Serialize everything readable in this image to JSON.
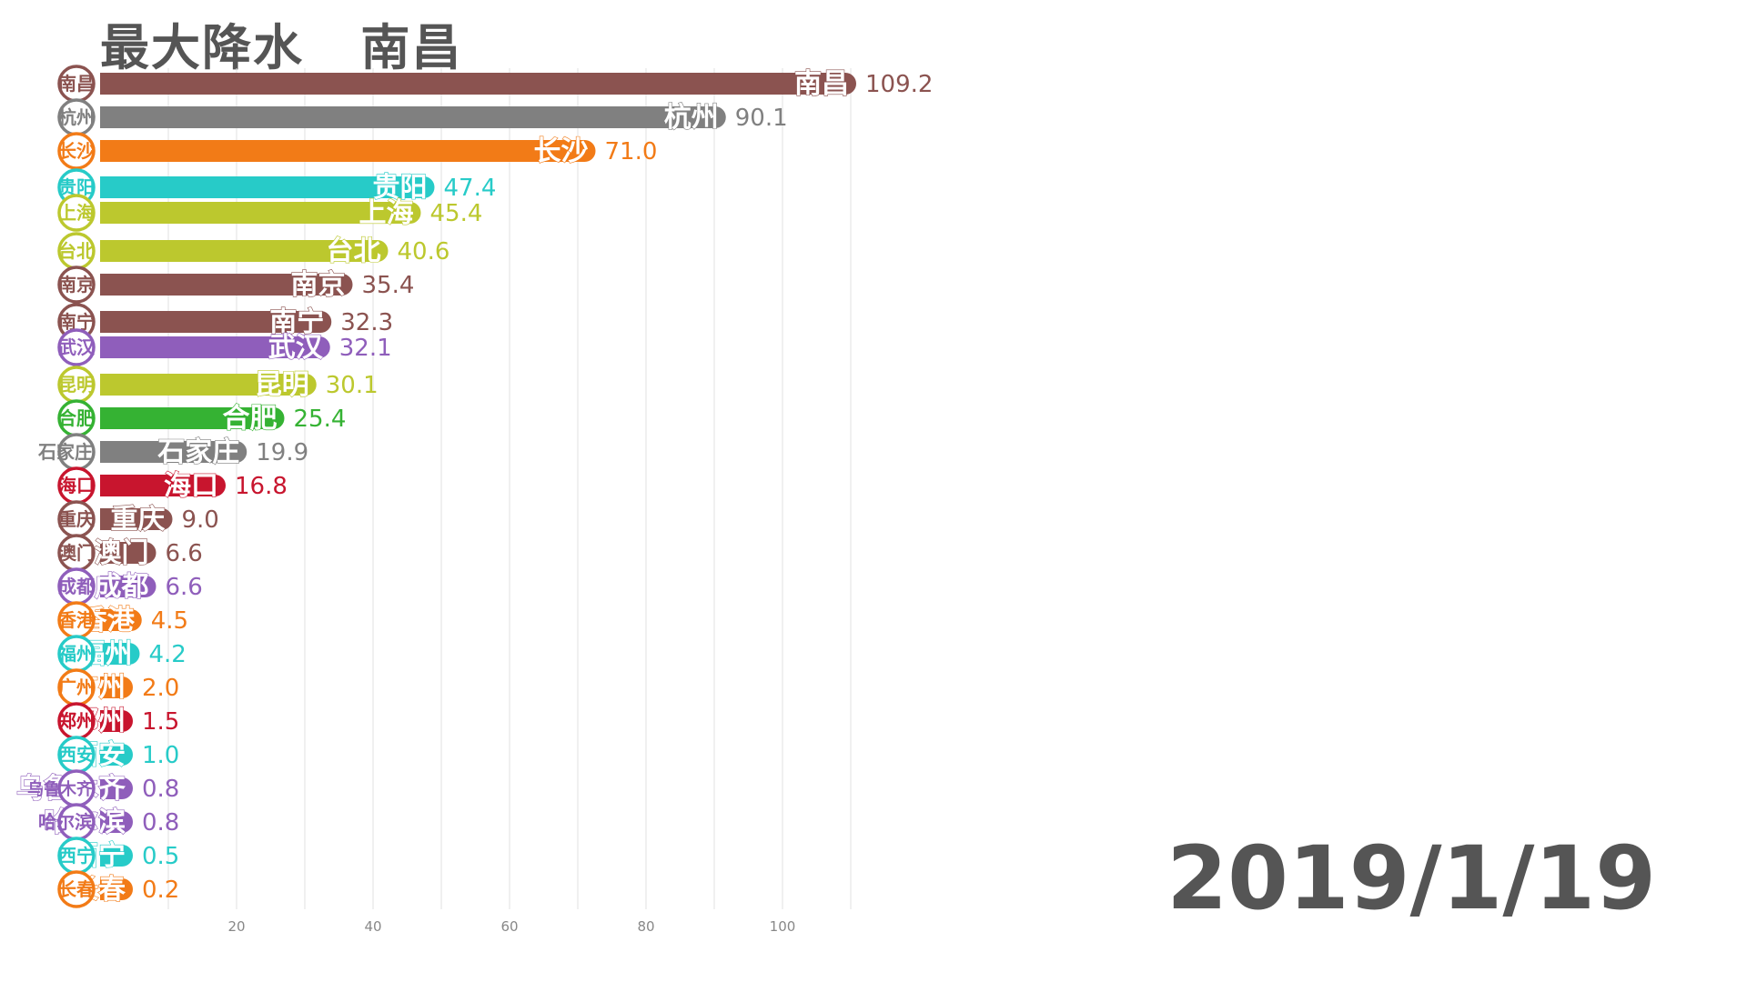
{
  "header": {
    "title_prefix": "最大降水",
    "title_city": "南昌",
    "date": "2019/1/19"
  },
  "colors": {
    "brown": "#8B5350",
    "gray": "#808080",
    "orange": "#F27B17",
    "teal": "#27CBC8",
    "olive": "#BCC82E",
    "purple": "#8F5EBB",
    "green": "#35B233",
    "red": "#C8152E"
  },
  "chart_data": {
    "type": "bar",
    "orientation": "horizontal",
    "xlim": [
      0,
      120
    ],
    "xticks": [
      20,
      40,
      60,
      80,
      100
    ],
    "grid": true,
    "bars": [
      {
        "name": "南昌",
        "value": 109.2,
        "color": "#8B5350"
      },
      {
        "name": "杭州",
        "value": 90.1,
        "color": "#808080"
      },
      {
        "name": "长沙",
        "value": 71.0,
        "color": "#F27B17"
      },
      {
        "name": "贵阳",
        "value": 47.4,
        "color": "#27CBC8"
      },
      {
        "name": "上海",
        "value": 45.4,
        "color": "#BCC82E"
      },
      {
        "name": "台北",
        "value": 40.6,
        "color": "#BCC82E"
      },
      {
        "name": "南京",
        "value": 35.4,
        "color": "#8B5350"
      },
      {
        "name": "南宁",
        "value": 32.3,
        "color": "#8B5350"
      },
      {
        "name": "武汉",
        "value": 32.1,
        "color": "#8F5EBB"
      },
      {
        "name": "昆明",
        "value": 30.1,
        "color": "#BCC82E"
      },
      {
        "name": "合肥",
        "value": 25.4,
        "color": "#35B233"
      },
      {
        "name": "石家庄",
        "value": 19.9,
        "color": "#808080"
      },
      {
        "name": "海口",
        "value": 16.8,
        "color": "#C8152E"
      },
      {
        "name": "重庆",
        "value": 9.0,
        "color": "#8B5350"
      },
      {
        "name": "澳门",
        "value": 6.6,
        "color": "#8B5350"
      },
      {
        "name": "成都",
        "value": 6.6,
        "color": "#8F5EBB"
      },
      {
        "name": "香港",
        "value": 4.5,
        "color": "#F27B17"
      },
      {
        "name": "福州",
        "value": 4.2,
        "color": "#27CBC8"
      },
      {
        "name": "广州",
        "value": 2.0,
        "color": "#F27B17"
      },
      {
        "name": "郑州",
        "value": 1.5,
        "color": "#C8152E"
      },
      {
        "name": "西安",
        "value": 1.0,
        "color": "#27CBC8"
      },
      {
        "name": "乌鲁木齐",
        "value": 0.8,
        "color": "#8F5EBB"
      },
      {
        "name": "哈尔滨",
        "value": 0.8,
        "color": "#8F5EBB"
      },
      {
        "name": "西宁",
        "value": 0.5,
        "color": "#27CBC8"
      },
      {
        "name": "长春",
        "value": 0.2,
        "color": "#F27B17"
      }
    ]
  }
}
